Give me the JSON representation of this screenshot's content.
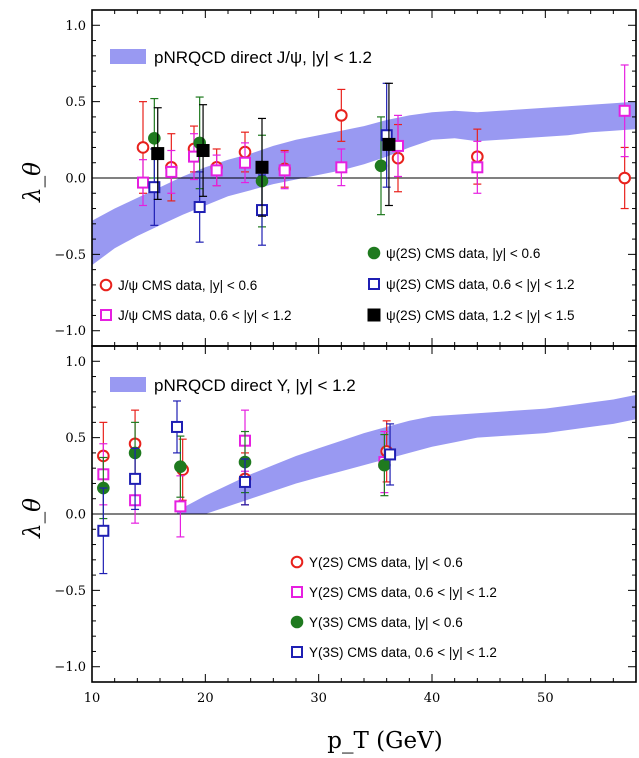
{
  "chart_data": [
    {
      "type": "scatter",
      "xlabel": "p_T (GeV)",
      "ylabel": "λ_θ",
      "xlim": [
        10,
        58
      ],
      "ylim": [
        -1.1,
        1.1
      ],
      "x_ticks": [
        "10",
        "20",
        "30",
        "40",
        "50"
      ],
      "y_ticks": [
        "1.0",
        "0.5",
        "0.0",
        "−0.5",
        "−1.0"
      ],
      "grid": false,
      "band": {
        "name": "pNRQCD direct J/ψ, |y| < 1.2",
        "color": "#9999f2",
        "x": [
          10,
          12,
          14,
          16,
          18,
          20,
          22,
          24,
          26,
          28,
          30,
          32,
          34,
          36,
          38,
          40,
          42,
          44,
          46,
          48,
          50,
          52,
          54,
          56,
          58
        ],
        "upper": [
          -0.28,
          -0.2,
          -0.13,
          -0.06,
          0.01,
          0.07,
          0.12,
          0.16,
          0.21,
          0.25,
          0.28,
          0.31,
          0.34,
          0.38,
          0.41,
          0.43,
          0.44,
          0.43,
          0.44,
          0.45,
          0.46,
          0.47,
          0.48,
          0.49,
          0.5
        ],
        "lower": [
          -0.57,
          -0.46,
          -0.38,
          -0.31,
          -0.24,
          -0.18,
          -0.12,
          -0.08,
          -0.04,
          -0.01,
          0.02,
          0.05,
          0.09,
          0.14,
          0.2,
          0.25,
          0.26,
          0.24,
          0.25,
          0.26,
          0.27,
          0.28,
          0.3,
          0.31,
          0.32
        ]
      },
      "series": [
        {
          "name": "J/ψ CMS data, |y| < 0.6",
          "marker": "circle-open",
          "color": "#e8211c",
          "points": [
            [
              14.5,
              0.2,
              0.3
            ],
            [
              17,
              0.07,
              0.22
            ],
            [
              19,
              0.19,
              0.15
            ],
            [
              21,
              0.07,
              0.12
            ],
            [
              23.5,
              0.17,
              0.13
            ],
            [
              27,
              0.06,
              0.12
            ],
            [
              32,
              0.41,
              0.17
            ],
            [
              37,
              0.13,
              0.22
            ],
            [
              44,
              0.14,
              0.18
            ],
            [
              57,
              0.0,
              0.2
            ]
          ]
        },
        {
          "name": "J/ψ CMS data, 0.6 < |y| < 1.2",
          "marker": "square-open",
          "color": "#e61fe0",
          "points": [
            [
              14.5,
              -0.03,
              0.15
            ],
            [
              17,
              0.04,
              0.14
            ],
            [
              19,
              0.14,
              0.15
            ],
            [
              21,
              0.05,
              0.1
            ],
            [
              23.5,
              0.1,
              0.13
            ],
            [
              27,
              0.05,
              0.12
            ],
            [
              32,
              0.07,
              0.12
            ],
            [
              37,
              0.21,
              0.2
            ],
            [
              44,
              0.07,
              0.17
            ],
            [
              57,
              0.44,
              0.3
            ]
          ]
        },
        {
          "name": "ψ(2S) CMS data, |y| < 0.6",
          "marker": "circle-filled",
          "color": "#1f7a1f",
          "points": [
            [
              15.5,
              0.26,
              0.26
            ],
            [
              19.5,
              0.23,
              0.3
            ],
            [
              25,
              -0.02,
              0.3
            ],
            [
              35.5,
              0.08,
              0.32
            ]
          ]
        },
        {
          "name": "ψ(2S) CMS data, 0.6 < |y| < 1.2",
          "marker": "square-open",
          "color": "#1f1fb3",
          "points": [
            [
              15.5,
              -0.06,
              0.25
            ],
            [
              19.5,
              -0.19,
              0.23
            ],
            [
              25,
              -0.21,
              0.23
            ],
            [
              36,
              0.28,
              0.34
            ]
          ]
        },
        {
          "name": "ψ(2S) CMS data, 1.2 < |y| < 1.5",
          "marker": "square-filled",
          "color": "#000000",
          "points": [
            [
              15.8,
              0.16,
              0.3
            ],
            [
              19.8,
              0.18,
              0.3
            ],
            [
              25,
              0.07,
              0.32
            ],
            [
              36.2,
              0.22,
              0.4
            ]
          ]
        }
      ]
    },
    {
      "type": "scatter",
      "xlabel": "p_T (GeV)",
      "ylabel": "λ_θ",
      "xlim": [
        10,
        58
      ],
      "ylim": [
        -1.1,
        1.1
      ],
      "x_ticks": [
        "10",
        "20",
        "30",
        "40",
        "50"
      ],
      "y_ticks": [
        "1.0",
        "0.5",
        "0.0",
        "−0.5",
        "−1.0"
      ],
      "grid": false,
      "band": {
        "name": "pNRQCD direct Υ, |y| < 1.2",
        "color": "#9999f2",
        "x": [
          17.5,
          20,
          22,
          24,
          26,
          28,
          30,
          32,
          34,
          36,
          38,
          40,
          42,
          44,
          46,
          48,
          50,
          52,
          54,
          56,
          58
        ],
        "upper": [
          0.02,
          0.12,
          0.19,
          0.26,
          0.32,
          0.38,
          0.43,
          0.48,
          0.53,
          0.57,
          0.61,
          0.64,
          0.65,
          0.66,
          0.67,
          0.68,
          0.69,
          0.71,
          0.73,
          0.75,
          0.78
        ],
        "lower": [
          0.0,
          0.0,
          0.05,
          0.1,
          0.15,
          0.2,
          0.24,
          0.28,
          0.32,
          0.36,
          0.4,
          0.44,
          0.47,
          0.5,
          0.51,
          0.52,
          0.53,
          0.55,
          0.57,
          0.59,
          0.62
        ]
      },
      "series": [
        {
          "name": "Υ(2S) CMS data, |y| < 0.6",
          "marker": "circle-open",
          "color": "#e8211c",
          "points": [
            [
              11,
              0.38,
              0.22
            ],
            [
              13.8,
              0.46,
              0.22
            ],
            [
              18,
              0.29,
              0.2
            ],
            [
              23.5,
              0.23,
              0.17
            ],
            [
              36,
              0.41,
              0.2
            ]
          ]
        },
        {
          "name": "Υ(2S) CMS data, 0.6 < |y| < 1.2",
          "marker": "square-open",
          "color": "#e61fe0",
          "points": [
            [
              11,
              0.26,
              0.2
            ],
            [
              13.8,
              0.09,
              0.15
            ],
            [
              17.8,
              0.05,
              0.2
            ],
            [
              23.5,
              0.48,
              0.2
            ],
            [
              35.8,
              0.34,
              0.2
            ]
          ]
        },
        {
          "name": "Υ(3S) CMS data, |y| < 0.6",
          "marker": "circle-filled",
          "color": "#1f7a1f",
          "points": [
            [
              11,
              0.17,
              0.2
            ],
            [
              13.8,
              0.4,
              0.2
            ],
            [
              17.8,
              0.31,
              0.2
            ],
            [
              23.5,
              0.34,
              0.2
            ],
            [
              35.8,
              0.32,
              0.2
            ]
          ]
        },
        {
          "name": "Υ(3S) CMS data, 0.6 < |y| < 1.2",
          "marker": "square-open",
          "color": "#1f1fb3",
          "points": [
            [
              11,
              -0.11,
              0.28
            ],
            [
              13.8,
              0.23,
              0.2
            ],
            [
              17.5,
              0.57,
              0.17
            ],
            [
              23.5,
              0.21,
              0.15
            ],
            [
              36.3,
              0.39,
              0.2
            ]
          ]
        }
      ]
    }
  ]
}
